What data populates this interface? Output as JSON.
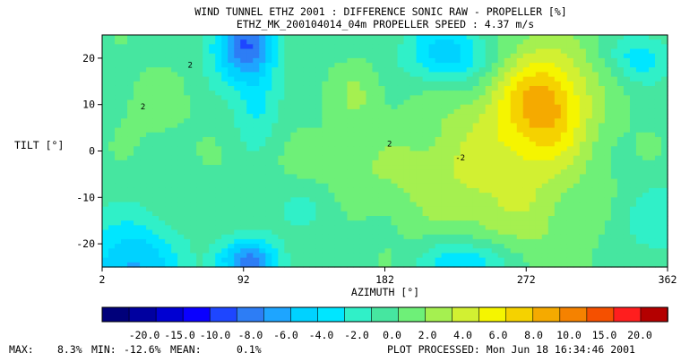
{
  "chart_data": {
    "type": "heatmap",
    "title": "WIND TUNNEL ETHZ 2001 : DIFFERENCE SONIC RAW - PROPELLER  [%]",
    "subtitle": "ETHZ_MK_200104014_04m PROPELLER SPEED :  4.37 m/s",
    "xlabel": "AZIMUTH [°]",
    "ylabel": "TILT [°]",
    "x_ticks": [
      "2",
      "92",
      "182",
      "272",
      "362"
    ],
    "y_ticks": [
      "20",
      "10",
      "0",
      "-10",
      "-20"
    ],
    "x_tick_values": [
      2,
      92,
      182,
      272,
      362
    ],
    "y_tick_values": [
      20,
      10,
      0,
      -10,
      -20
    ],
    "xlim": [
      2,
      362
    ],
    "ylim": [
      -25,
      25
    ],
    "grid": false,
    "contour_labels": [
      "2",
      "2",
      "2",
      "-2"
    ],
    "colorbar": {
      "levels": [
        -22,
        -20,
        -18,
        -16,
        -14,
        -12,
        -10,
        -8,
        -6,
        -4,
        -2,
        0,
        2,
        4,
        6,
        8,
        10,
        12,
        14,
        16,
        18
      ],
      "labels": [
        "-20.0",
        "-15.0",
        "-10.0",
        "-8.0",
        "-6.0",
        "-4.0",
        "-2.0",
        "0.0",
        "2.0",
        "4.0",
        "6.0",
        "8.0",
        "10.0",
        "15.0",
        "20.0"
      ],
      "colors": [
        "#00007a",
        "#0000a0",
        "#0000d2",
        "#0a00ff",
        "#1e46ff",
        "#2d7df5",
        "#1ea5ff",
        "#00d2ff",
        "#00e6ff",
        "#30f0c8",
        "#46e6a0",
        "#6ef078",
        "#a5f050",
        "#d2f032",
        "#f5f500",
        "#f5d200",
        "#f5aa00",
        "#f58200",
        "#f55000",
        "#ff1e1e",
        "#b40000"
      ]
    },
    "centers": [
      {
        "x": 285,
        "y": 10,
        "a": 27,
        "b": 11,
        "amp": 8.8
      },
      {
        "x": 260,
        "y": 0,
        "a": 50,
        "b": 30,
        "amp": 4.5
      },
      {
        "x": 165,
        "y": 12,
        "a": 16,
        "b": 7,
        "amp": 2.5
      },
      {
        "x": 35,
        "y": 10,
        "a": 22,
        "b": 7,
        "amp": 1.5
      },
      {
        "x": 92,
        "y": 23,
        "a": 20,
        "b": 8,
        "amp": -11
      },
      {
        "x": 100,
        "y": 10,
        "a": 14,
        "b": 9,
        "amp": -4
      },
      {
        "x": 95,
        "y": -24,
        "a": 20,
        "b": 5,
        "amp": -10
      },
      {
        "x": 20,
        "y": -25,
        "a": 30,
        "b": 10,
        "amp": -8
      },
      {
        "x": 235,
        "y": -24,
        "a": 28,
        "b": 5,
        "amp": -7
      },
      {
        "x": 225,
        "y": 21,
        "a": 30,
        "b": 7,
        "amp": -8
      },
      {
        "x": 345,
        "y": 20,
        "a": 18,
        "b": 5,
        "amp": -5
      },
      {
        "x": 355,
        "y": -15,
        "a": 25,
        "b": 8,
        "amp": -3
      },
      {
        "x": 130,
        "y": -12,
        "a": 30,
        "b": 6,
        "amp": -2
      },
      {
        "x": 190,
        "y": -5,
        "a": 70,
        "b": 9,
        "amp": 2.2
      }
    ],
    "base": -0.5
  },
  "stats": {
    "max_label": "MAX:",
    "max_value": "8.3%",
    "min_label": "MIN:",
    "min_value": "-12.6%",
    "mean_label": "MEAN:",
    "mean_value": "0.1%"
  },
  "processed": "PLOT PROCESSED: Mon Jun 18 16:34:46 2001"
}
